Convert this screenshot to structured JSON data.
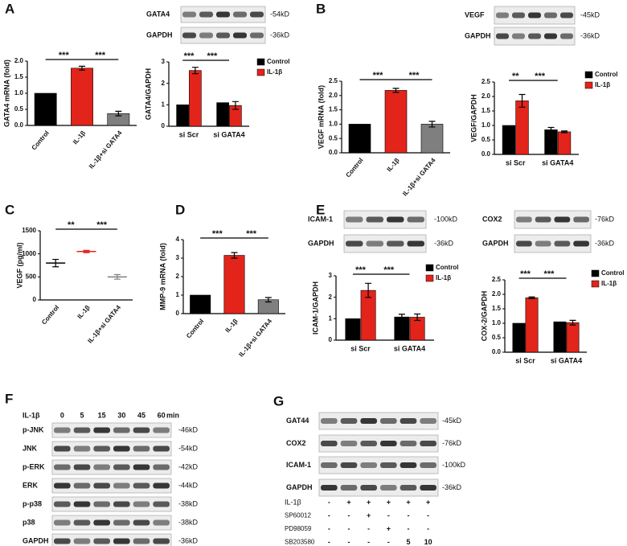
{
  "panel_labels": [
    "A",
    "B",
    "C",
    "D",
    "E",
    "F",
    "G"
  ],
  "blots": [
    {
      "rows": [
        {
          "label": "GATA4",
          "size": "-54kD"
        },
        {
          "label": "GAPDH",
          "size": "-36kD"
        }
      ]
    },
    {
      "rows": [
        {
          "label": "VEGF",
          "size": "-45kD"
        },
        {
          "label": "GAPDH",
          "size": "-36kD"
        }
      ]
    },
    {
      "rows": [
        {
          "label": "ICAM-1",
          "size": "-100kD"
        },
        {
          "label": "GAPDH",
          "size": "-36kD"
        }
      ]
    },
    {
      "rows": [
        {
          "label": "COX2",
          "size": "-76kD"
        },
        {
          "label": "GAPDH",
          "size": "-36kD"
        }
      ]
    },
    {
      "treatment": "IL-1β",
      "lanes": [
        "0",
        "5",
        "15",
        "30",
        "45",
        "60"
      ],
      "unit": "min",
      "rows": [
        {
          "label": "p-JNK",
          "size": "-46kD"
        },
        {
          "label": "JNK",
          "size": "-54kD"
        },
        {
          "label": "p-ERK",
          "size": "-42kD"
        },
        {
          "label": "ERK",
          "size": "-44kD"
        },
        {
          "label": "p-p38",
          "size": "-38kD"
        },
        {
          "label": "p38",
          "size": "-38kD"
        },
        {
          "label": "GAPDH",
          "size": "-36kD"
        }
      ]
    },
    {
      "rows": [
        {
          "label": "GAT44",
          "size": "-45kD"
        },
        {
          "label": "COX2",
          "size": "-76kD"
        },
        {
          "label": "ICAM-1",
          "size": "-100kD"
        },
        {
          "label": "GAPDH",
          "size": "-36kD"
        }
      ],
      "treatments": [
        {
          "label": "IL-1β",
          "lanes": [
            "-",
            "+",
            "+",
            "+",
            "+",
            "+"
          ]
        },
        {
          "label": "SP60012",
          "lanes": [
            "-",
            "-",
            "+",
            "-",
            "-",
            "-"
          ]
        },
        {
          "label": "PD98059",
          "lanes": [
            "-",
            "-",
            "-",
            "+",
            "-",
            "-"
          ]
        },
        {
          "label": "SB203580",
          "lanes": [
            "-",
            "-",
            "-",
            "-",
            "5",
            "10"
          ]
        }
      ]
    }
  ],
  "chart_data": [
    {
      "type": "bar",
      "y_label": "GATA4 mRNA (fold)",
      "categories": [
        "Control",
        "IL-1β",
        "IL-1β+si GATA4"
      ],
      "values": [
        1,
        1.78,
        0.37
      ],
      "errors": [
        0,
        0.06,
        0.07
      ],
      "colors": [
        "#000000",
        "#e3241b",
        "#7f7f7f"
      ],
      "ylim": [
        0,
        2
      ],
      "yticks": [
        {
          "value": 0,
          "label": "0.0"
        },
        0.5,
        {
          "value": 1,
          "label": "1.0"
        },
        1.5,
        {
          "value": 2,
          "label": "2.0"
        }
      ],
      "significance": [
        "***",
        "***"
      ]
    },
    {
      "type": "grouped_bar",
      "y_label": "GATA4/GAPDH",
      "categories": [
        "si Scr",
        "si GATA4"
      ],
      "series": [
        {
          "name": "Control",
          "color": "#000000",
          "values": [
            1,
            1.1
          ],
          "errors": [
            0,
            0
          ]
        },
        {
          "name": "IL-1β",
          "color": "#e3241b",
          "values": [
            2.6,
            0.97
          ],
          "errors": [
            0.15,
            0.18
          ]
        }
      ],
      "ylim": [
        0,
        3
      ],
      "yticks": [
        0,
        1,
        2,
        3
      ],
      "significance": [
        "***",
        "***"
      ]
    },
    {
      "type": "bar",
      "y_label": "VEGF mRNA (fold)",
      "categories": [
        "Control",
        "IL-1β",
        "IL-1β+si GATA4"
      ],
      "values": [
        1,
        2.18,
        1
      ],
      "errors": [
        0,
        0.07,
        0.1
      ],
      "colors": [
        "#000000",
        "#e3241b",
        "#7f7f7f"
      ],
      "ylim": [
        0,
        2.5
      ],
      "yticks": [
        {
          "value": 0,
          "label": "0.0"
        },
        0.5,
        {
          "value": 1,
          "label": "1.0"
        },
        1.5,
        {
          "value": 2,
          "label": "2.0"
        },
        2.5
      ],
      "significance": [
        "***",
        "***"
      ]
    },
    {
      "type": "grouped_bar",
      "y_label": "VEGF/GAPDH",
      "categories": [
        "si Scr",
        "si GATA4"
      ],
      "series": [
        {
          "name": "Control",
          "color": "#000000",
          "values": [
            1,
            0.85
          ],
          "errors": [
            0,
            0.08
          ]
        },
        {
          "name": "IL-1β",
          "color": "#e3241b",
          "values": [
            1.85,
            0.78
          ],
          "errors": [
            0.22,
            0.03
          ]
        }
      ],
      "ylim": [
        0,
        2.5
      ],
      "yticks": [
        {
          "value": 0,
          "label": "0.0"
        },
        0.5,
        {
          "value": 1,
          "label": "1.0"
        },
        1.5,
        {
          "value": 2,
          "label": "2.0"
        },
        2.5
      ],
      "significance": [
        "**",
        "***"
      ]
    },
    {
      "type": "dot",
      "y_label": "VEGF (pg/ml)",
      "categories": [
        "Control",
        "IL-1β",
        "IL-1β+si GATA4"
      ],
      "values": [
        800,
        1050,
        500
      ],
      "errors": [
        80,
        25,
        50
      ],
      "colors": [
        "#000000",
        "#e3241b",
        "#7f7f7f"
      ],
      "ylim": [
        0,
        1500
      ],
      "yticks": [
        0,
        500,
        1000,
        1500
      ],
      "significance": [
        "**",
        "***"
      ]
    },
    {
      "type": "bar",
      "y_label": "MMP-9 mRNA (fold)",
      "categories": [
        "Control",
        "IL-1β",
        "IL-1β+si GATA4"
      ],
      "values": [
        1,
        3.15,
        0.75
      ],
      "errors": [
        0,
        0.15,
        0.12
      ],
      "colors": [
        "#000000",
        "#e3241b",
        "#7f7f7f"
      ],
      "ylim": [
        0,
        4
      ],
      "yticks": [
        0,
        1,
        2,
        3,
        4
      ],
      "significance": [
        "***",
        "***"
      ]
    },
    {
      "type": "grouped_bar",
      "y_label": "ICAM-1/GAPDH",
      "categories": [
        "si Scr",
        "si GATA4"
      ],
      "series": [
        {
          "name": "Control",
          "color": "#000000",
          "values": [
            1,
            1.08
          ],
          "errors": [
            0,
            0.13
          ]
        },
        {
          "name": "IL-1β",
          "color": "#e3241b",
          "values": [
            2.32,
            1.07
          ],
          "errors": [
            0.33,
            0.15
          ]
        }
      ],
      "ylim": [
        0,
        3
      ],
      "yticks": [
        0,
        1,
        2,
        3
      ],
      "significance": [
        "***",
        "***"
      ]
    },
    {
      "type": "grouped_bar",
      "y_label": "COX-2/GAPDH",
      "categories": [
        "si Scr",
        "si GATA4"
      ],
      "series": [
        {
          "name": "Control",
          "color": "#000000",
          "values": [
            1,
            1.05
          ],
          "errors": [
            0,
            0
          ]
        },
        {
          "name": "IL-1β",
          "color": "#e3241b",
          "values": [
            1.88,
            1.02
          ],
          "errors": [
            0.03,
            0.08
          ]
        }
      ],
      "ylim": [
        0,
        2.5
      ],
      "yticks": [
        {
          "value": 0,
          "label": "0.0"
        },
        0.5,
        {
          "value": 1,
          "label": "1.0"
        },
        1.5,
        {
          "value": 2,
          "label": "2.0"
        },
        2.5
      ],
      "significance": [
        "***",
        "***"
      ]
    }
  ]
}
